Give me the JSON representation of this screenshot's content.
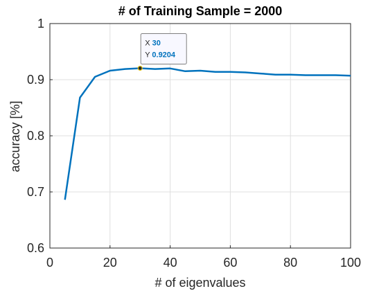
{
  "chart_data": {
    "type": "line",
    "title": "# of Training Sample = 2000",
    "xlabel": "# of eigenvalues",
    "ylabel": "accuracy [%]",
    "xlim": [
      0,
      100
    ],
    "ylim": [
      0.6,
      1
    ],
    "xticks": [
      0,
      20,
      40,
      60,
      80,
      100
    ],
    "yticks": [
      0.6,
      0.7,
      0.8,
      0.9,
      1
    ],
    "xtick_labels": [
      "0",
      "20",
      "40",
      "60",
      "80",
      "100"
    ],
    "ytick_labels": [
      "0.6",
      "0.7",
      "0.8",
      "0.9",
      "1"
    ],
    "grid": true,
    "series": [
      {
        "color": "#0072BD",
        "x": [
          5,
          10,
          15,
          20,
          25,
          30,
          35,
          40,
          45,
          50,
          55,
          60,
          65,
          70,
          75,
          80,
          85,
          90,
          95,
          100
        ],
        "y": [
          0.686,
          0.868,
          0.905,
          0.916,
          0.919,
          0.9204,
          0.919,
          0.92,
          0.915,
          0.916,
          0.914,
          0.914,
          0.913,
          0.911,
          0.909,
          0.909,
          0.908,
          0.908,
          0.908,
          0.907
        ]
      }
    ],
    "datatip": {
      "x_label": "X",
      "x_value": "30",
      "y_label": "Y",
      "y_value": "0.9204",
      "x": 30,
      "y": 0.9204
    }
  }
}
